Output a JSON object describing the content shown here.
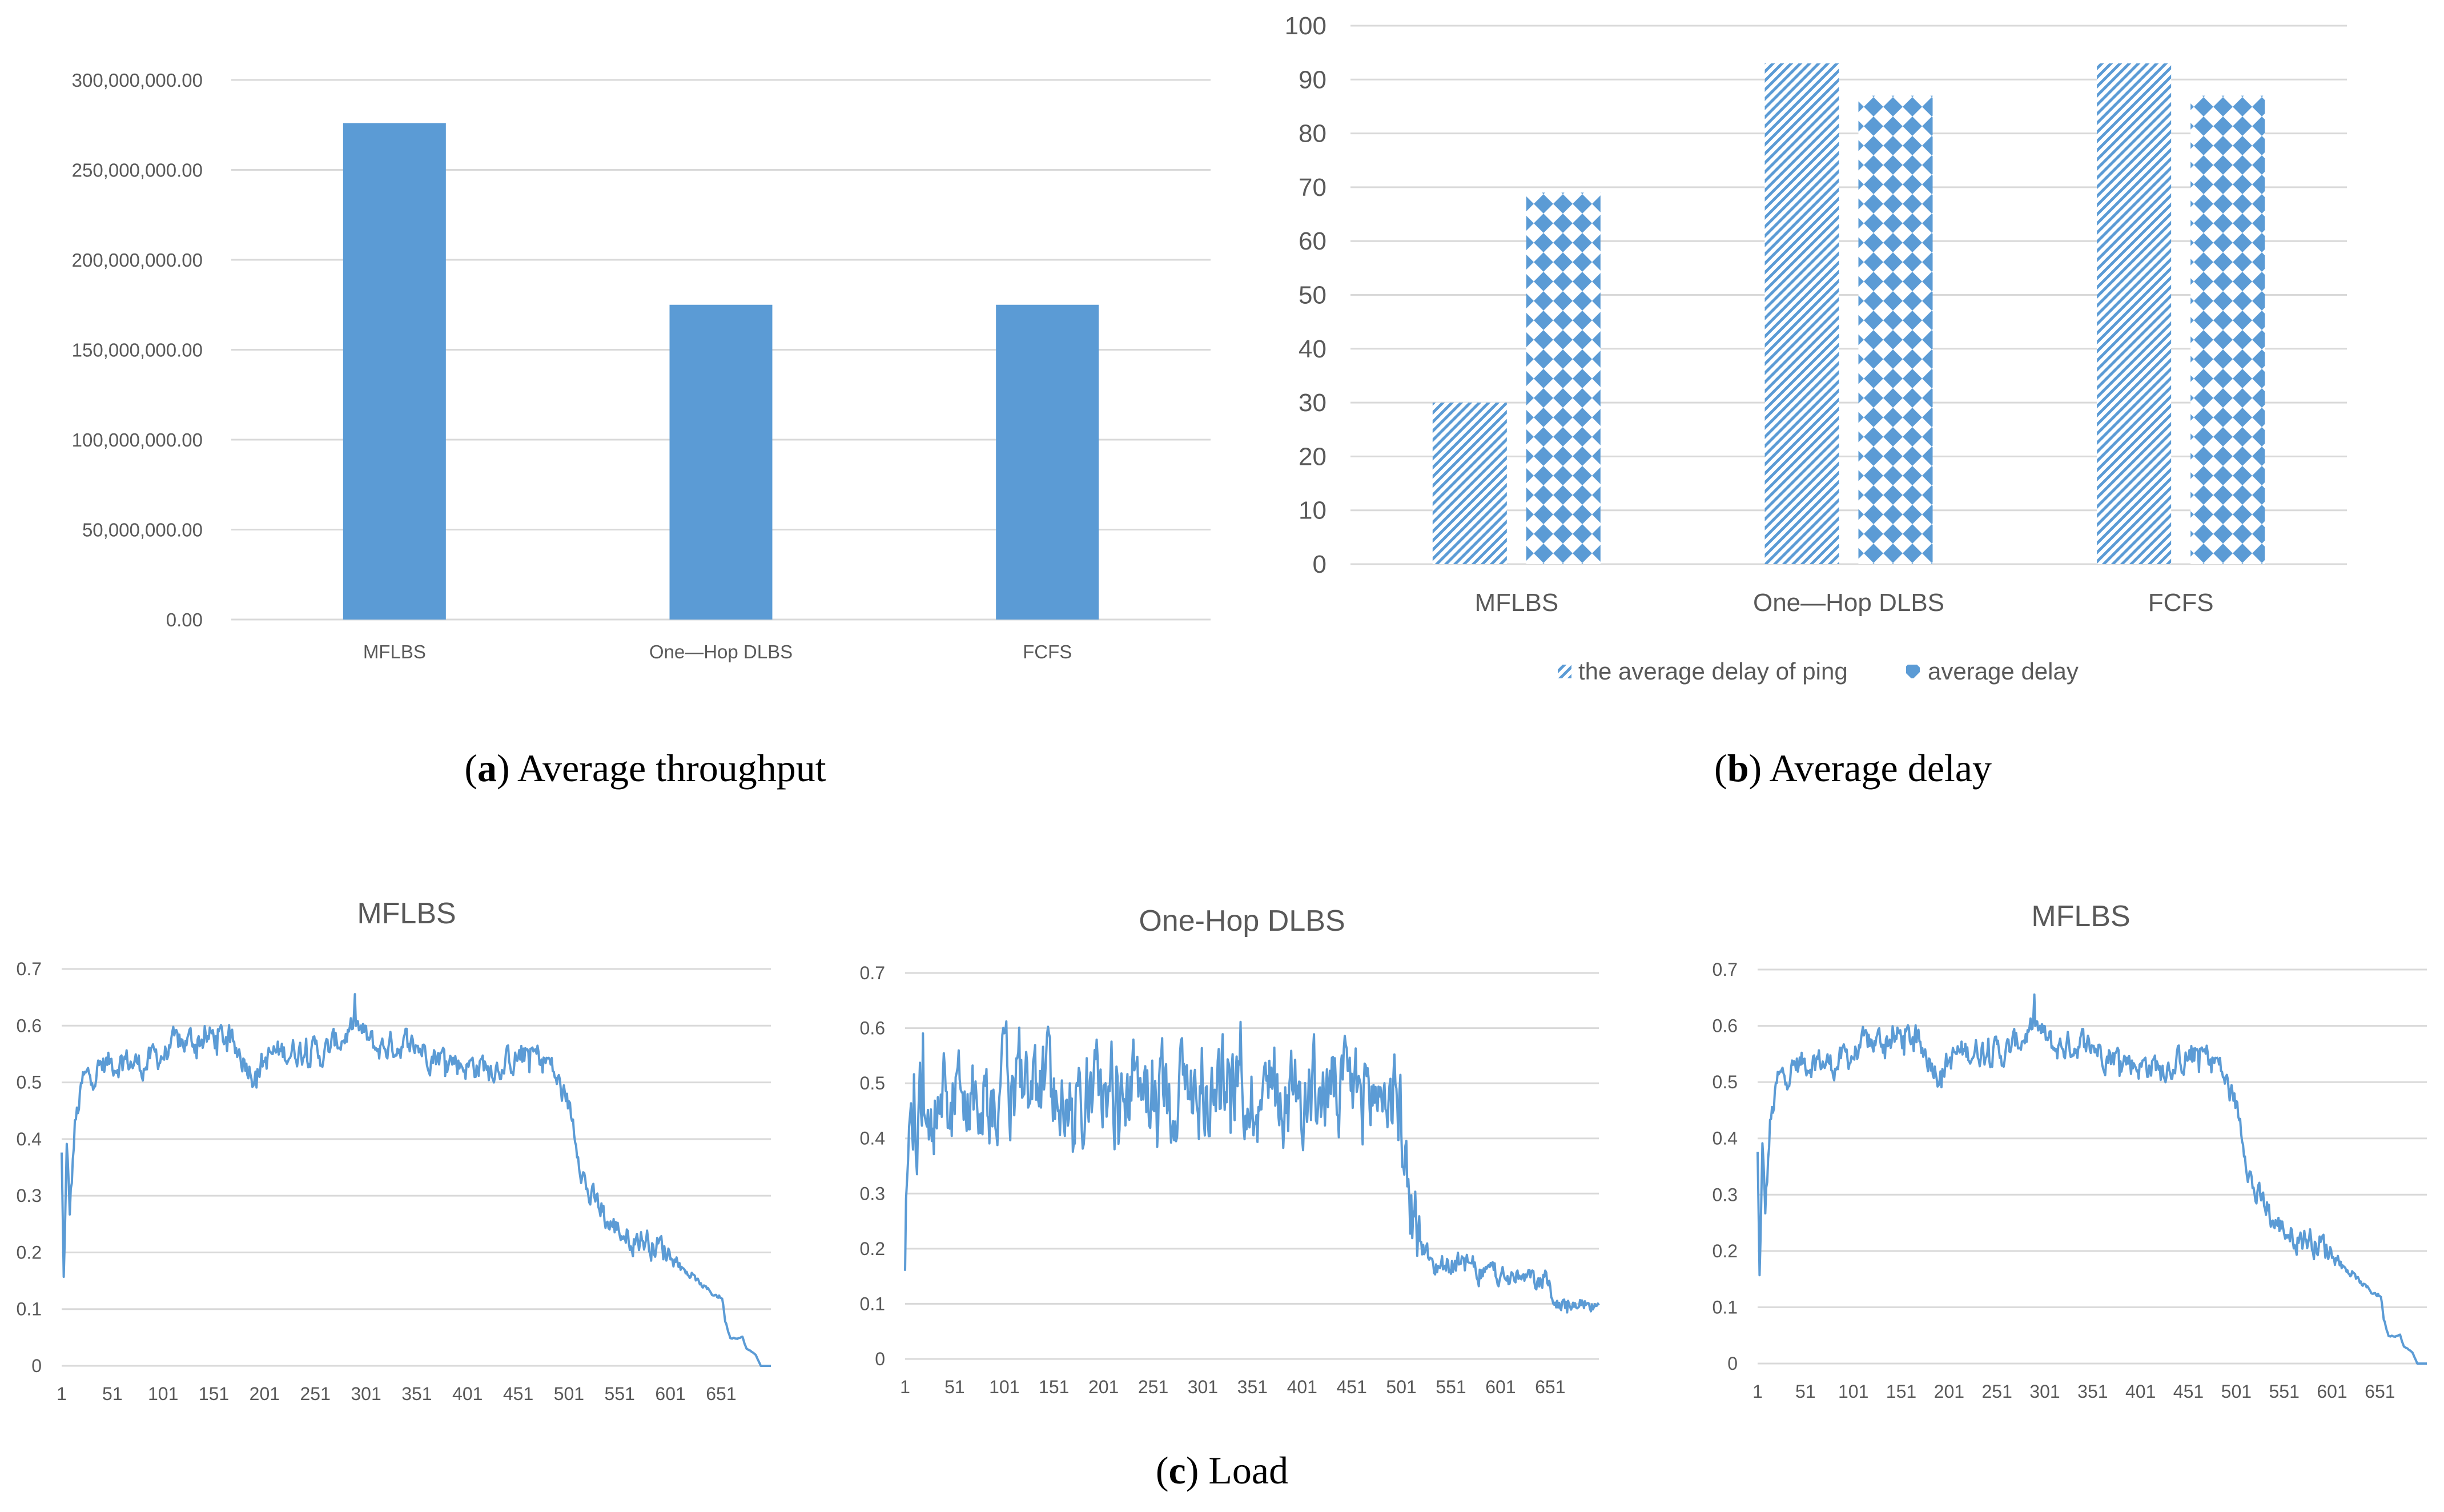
{
  "colors": {
    "bar": "#5b9bd5",
    "line": "#5b9bd5",
    "grid": "#d9d9d9",
    "text": "#595959"
  },
  "captions": {
    "a": {
      "letter": "a",
      "text": "Average throughput"
    },
    "b": {
      "letter": "b",
      "text": "Average delay"
    },
    "c": {
      "letter": "c",
      "text": "Load"
    }
  },
  "chart_data": [
    {
      "id": "throughput",
      "type": "bar",
      "title": "",
      "categories": [
        "MFLBS",
        "One—Hop DLBS",
        "FCFS"
      ],
      "values": [
        276000000,
        175000000,
        175000000
      ],
      "ylim": [
        0,
        300000000
      ],
      "yticks": [
        "0.00",
        "50,000,000.00",
        "100,000,000.00",
        "150,000,000.00",
        "200,000,000.00",
        "250,000,000.00",
        "300,000,000.00"
      ],
      "xlabel": "",
      "ylabel": ""
    },
    {
      "id": "delay",
      "type": "bar",
      "title": "",
      "categories": [
        "MFLBS",
        "One—Hop DLBS",
        "FCFS"
      ],
      "series": [
        {
          "name": "the average delay of ping",
          "values": [
            30,
            93,
            93
          ],
          "pattern": "diagonal-hatch"
        },
        {
          "name": "average delay",
          "values": [
            69,
            87,
            87
          ],
          "pattern": "diamond"
        }
      ],
      "ylim": [
        0,
        100
      ],
      "yticks": [
        "0",
        "10",
        "20",
        "30",
        "40",
        "50",
        "60",
        "70",
        "80",
        "90",
        "100"
      ],
      "legend": "bottom"
    },
    {
      "id": "load1",
      "type": "line",
      "title": "MFLBS",
      "n": 700,
      "ylim": [
        0,
        0.7
      ],
      "yticks": [
        "0",
        "0.1",
        "0.2",
        "0.3",
        "0.4",
        "0.5",
        "0.6",
        "0.7"
      ],
      "xticks": [
        "1",
        "51",
        "101",
        "151",
        "201",
        "251",
        "301",
        "351",
        "401",
        "451",
        "501",
        "551",
        "601",
        "651"
      ],
      "profile": [
        [
          1,
          0.37
        ],
        [
          3,
          0.15
        ],
        [
          6,
          0.38
        ],
        [
          9,
          0.27
        ],
        [
          14,
          0.42
        ],
        [
          22,
          0.5
        ],
        [
          40,
          0.53
        ],
        [
          60,
          0.54
        ],
        [
          80,
          0.53
        ],
        [
          100,
          0.55
        ],
        [
          120,
          0.57
        ],
        [
          150,
          0.58
        ],
        [
          170,
          0.57
        ],
        [
          190,
          0.52
        ],
        [
          210,
          0.55
        ],
        [
          240,
          0.56
        ],
        [
          260,
          0.55
        ],
        [
          290,
          0.6
        ],
        [
          310,
          0.56
        ],
        [
          340,
          0.57
        ],
        [
          370,
          0.55
        ],
        [
          400,
          0.53
        ],
        [
          430,
          0.53
        ],
        [
          460,
          0.55
        ],
        [
          480,
          0.54
        ],
        [
          490,
          0.5
        ],
        [
          500,
          0.46
        ],
        [
          505,
          0.43
        ],
        [
          512,
          0.37
        ],
        [
          520,
          0.3
        ],
        [
          530,
          0.28
        ],
        [
          540,
          0.25
        ],
        [
          560,
          0.23
        ],
        [
          580,
          0.22
        ],
        [
          600,
          0.2
        ],
        [
          620,
          0.16
        ],
        [
          640,
          0.13
        ],
        [
          652,
          0.12
        ],
        [
          655,
          0.08
        ],
        [
          660,
          0.05
        ],
        [
          672,
          0.05
        ],
        [
          676,
          0.03
        ],
        [
          685,
          0.02
        ],
        [
          690,
          0
        ],
        [
          699,
          0
        ]
      ],
      "noise": 0.02
    },
    {
      "id": "load2",
      "type": "line",
      "title": "One-Hop DLBS",
      "n": 700,
      "ylim": [
        0,
        0.7
      ],
      "yticks": [
        "0",
        "0.1",
        "0.2",
        "0.3",
        "0.4",
        "0.5",
        "0.6",
        "0.7"
      ],
      "xticks": [
        "1",
        "51",
        "101",
        "151",
        "201",
        "251",
        "301",
        "351",
        "401",
        "451",
        "501",
        "551",
        "601",
        "651"
      ],
      "profile": [
        [
          1,
          0.15
        ],
        [
          3,
          0.35
        ],
        [
          10,
          0.42
        ],
        [
          20,
          0.48
        ],
        [
          60,
          0.47
        ],
        [
          120,
          0.49
        ],
        [
          200,
          0.48
        ],
        [
          300,
          0.49
        ],
        [
          400,
          0.48
        ],
        [
          470,
          0.48
        ],
        [
          498,
          0.48
        ],
        [
          505,
          0.35
        ],
        [
          512,
          0.28
        ],
        [
          520,
          0.2
        ],
        [
          535,
          0.17
        ],
        [
          560,
          0.17
        ],
        [
          600,
          0.15
        ],
        [
          640,
          0.14
        ],
        [
          650,
          0.14
        ],
        [
          652,
          0.11
        ],
        [
          655,
          0.1
        ],
        [
          699,
          0.1
        ]
      ],
      "noise": 0.07
    },
    {
      "id": "load3",
      "type": "line",
      "title": "MFLBS",
      "n": 700,
      "ylim": [
        0,
        0.7
      ],
      "yticks": [
        "0",
        "0.1",
        "0.2",
        "0.3",
        "0.4",
        "0.5",
        "0.6",
        "0.7"
      ],
      "xticks": [
        "1",
        "51",
        "101",
        "151",
        "201",
        "251",
        "301",
        "351",
        "401",
        "451",
        "501",
        "551",
        "601",
        "651"
      ],
      "profile": [
        [
          1,
          0.37
        ],
        [
          3,
          0.15
        ],
        [
          6,
          0.38
        ],
        [
          9,
          0.27
        ],
        [
          14,
          0.42
        ],
        [
          22,
          0.5
        ],
        [
          40,
          0.53
        ],
        [
          60,
          0.54
        ],
        [
          80,
          0.53
        ],
        [
          100,
          0.55
        ],
        [
          120,
          0.57
        ],
        [
          150,
          0.58
        ],
        [
          170,
          0.57
        ],
        [
          190,
          0.52
        ],
        [
          210,
          0.55
        ],
        [
          240,
          0.56
        ],
        [
          260,
          0.55
        ],
        [
          290,
          0.6
        ],
        [
          310,
          0.56
        ],
        [
          340,
          0.57
        ],
        [
          370,
          0.55
        ],
        [
          400,
          0.53
        ],
        [
          430,
          0.53
        ],
        [
          460,
          0.55
        ],
        [
          480,
          0.54
        ],
        [
          490,
          0.5
        ],
        [
          500,
          0.46
        ],
        [
          505,
          0.43
        ],
        [
          512,
          0.37
        ],
        [
          520,
          0.3
        ],
        [
          530,
          0.28
        ],
        [
          540,
          0.25
        ],
        [
          560,
          0.23
        ],
        [
          580,
          0.22
        ],
        [
          600,
          0.2
        ],
        [
          620,
          0.16
        ],
        [
          640,
          0.13
        ],
        [
          652,
          0.12
        ],
        [
          655,
          0.08
        ],
        [
          660,
          0.05
        ],
        [
          672,
          0.05
        ],
        [
          676,
          0.03
        ],
        [
          685,
          0.02
        ],
        [
          690,
          0
        ],
        [
          699,
          0
        ]
      ],
      "noise": 0.02
    }
  ]
}
